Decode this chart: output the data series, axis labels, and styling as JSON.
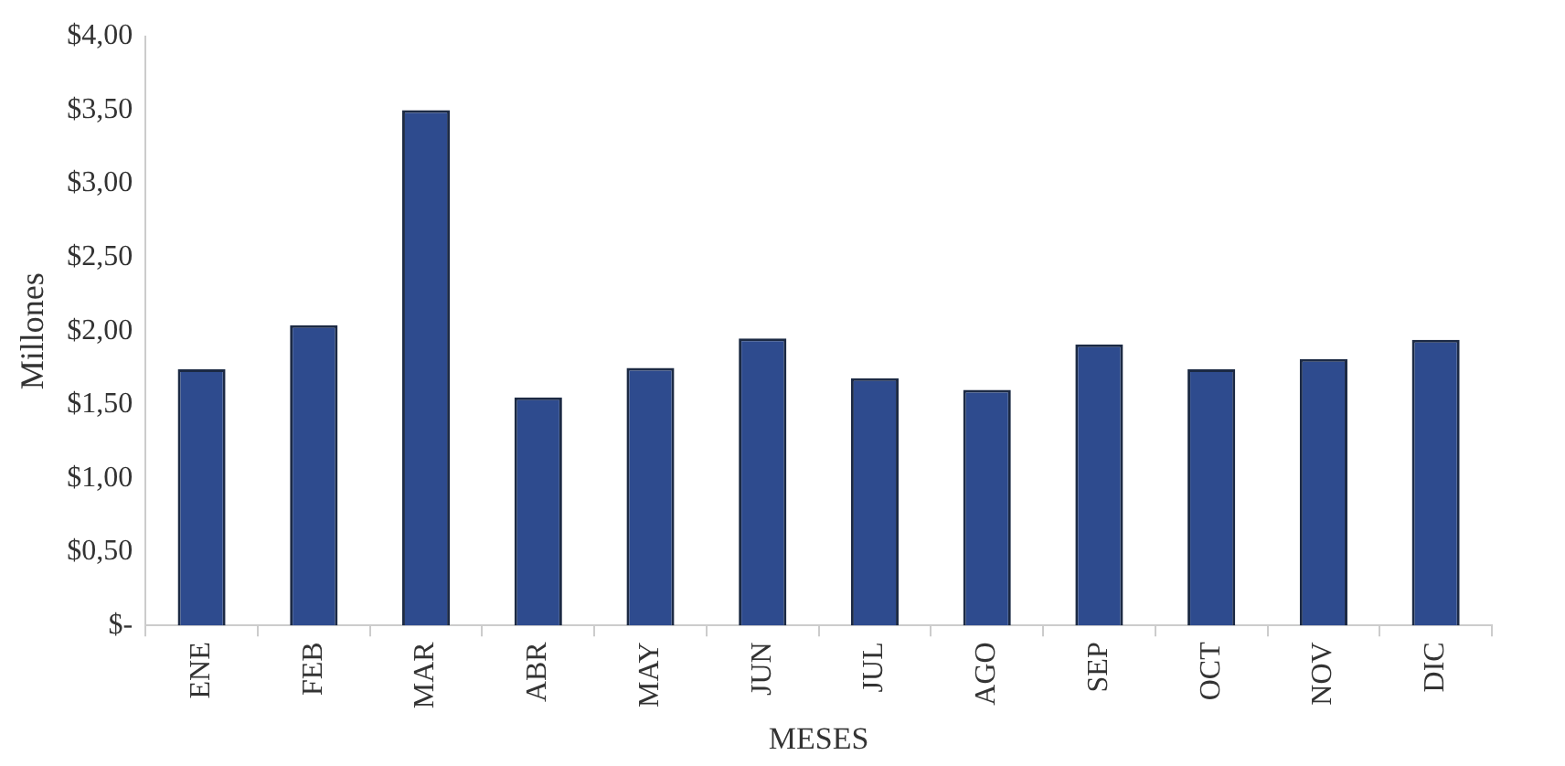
{
  "chart_data": {
    "type": "bar",
    "xlabel": "MESES",
    "ylabel": "Millones",
    "categories": [
      "ENE",
      "FEB",
      "MAR",
      "ABR",
      "MAY",
      "JUN",
      "JUL",
      "AGO",
      "SEP",
      "OCT",
      "NOV",
      "DIC"
    ],
    "values": [
      1.74,
      2.04,
      3.5,
      1.55,
      1.75,
      1.95,
      1.68,
      1.6,
      1.91,
      1.74,
      1.81,
      1.94
    ],
    "color": "#2e4b8e",
    "ylim": [
      0,
      4
    ],
    "yticks": [
      {
        "value": 0,
        "label": "$-"
      },
      {
        "value": 0.5,
        "label": "$0,50"
      },
      {
        "value": 1,
        "label": "$1,00"
      },
      {
        "value": 1.5,
        "label": "$1,50"
      },
      {
        "value": 2,
        "label": "$2,00"
      },
      {
        "value": 2.5,
        "label": "$2,50"
      },
      {
        "value": 3,
        "label": "$3,00"
      },
      {
        "value": 3.5,
        "label": "$3,50"
      },
      {
        "value": 4,
        "label": "$4,00"
      }
    ],
    "grid": false,
    "legend": false
  }
}
